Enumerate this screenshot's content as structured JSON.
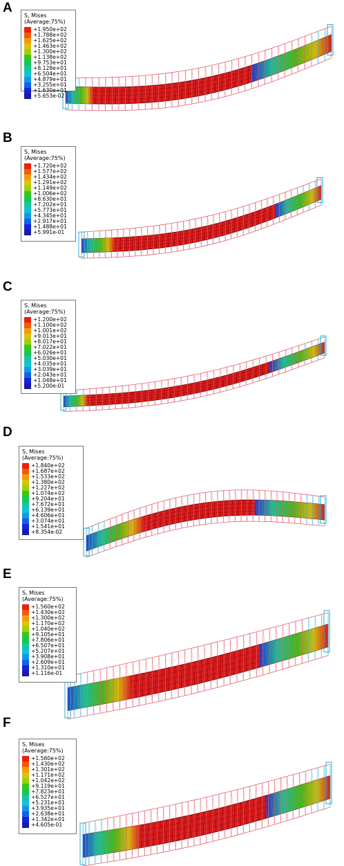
{
  "colors": [
    "#e8200c",
    "#f35a0a",
    "#f59a0a",
    "#d8c40a",
    "#98d20a",
    "#3cc41a",
    "#12c852",
    "#12c8a0",
    "#12c2d8",
    "#1298e8",
    "#1262e8",
    "#1226d8",
    "#1a1aa8"
  ],
  "panels": [
    {
      "letter": "A",
      "title": "S, Mises",
      "subtitle": "(Average:75%)",
      "values": [
        "+1.950e+02",
        "+1.788e+02",
        "+1.625e+02",
        "+1.463e+02",
        "+1.300e+02",
        "+1.138e+02",
        "+9.753e+01",
        "+8.128e+01",
        "+6.504e+01",
        "+4.879e+01",
        "+3.255e+01",
        "+1.630e+01",
        "+5.653e-02"
      ]
    },
    {
      "letter": "B",
      "title": "S, Mises",
      "subtitle": "(Average:75%)",
      "values": [
        "+1.720e+02",
        "+1.577e+02",
        "+1.434e+02",
        "+1.291e+02",
        "+1.149e+02",
        "+1.006e+02",
        "+8.630e+01",
        "+7.202e+01",
        "+5.773e+01",
        "+4.345e+01",
        "+2.917e+01",
        "+1.488e+01",
        "+5.991e-01"
      ]
    },
    {
      "letter": "C",
      "title": "S, Mises",
      "subtitle": "(Average:75%)",
      "values": [
        "+1.200e+02",
        "+1.100e+02",
        "+1.001e+02",
        "+9.013e+01",
        "+8.017e+01",
        "+7.022e+01",
        "+6.026e+01",
        "+5.030e+01",
        "+4.035e+01",
        "+3.039e+01",
        "+2.043e+01",
        "+1.048e+01",
        "+5.200e-01"
      ]
    },
    {
      "letter": "D",
      "title": "S, Mises",
      "subtitle": "(Average:75%)",
      "values": [
        "+1.840e+02",
        "+1.687e+02",
        "+1.533e+02",
        "+1.380e+02",
        "+1.227e+02",
        "+1.074e+02",
        "+9.204e+01",
        "+7.672e+01",
        "+6.139e+01",
        "+4.606e+01",
        "+3.074e+01",
        "+1.541e+01",
        "+8.354e-02"
      ]
    },
    {
      "letter": "E",
      "title": "S, Mises",
      "subtitle": "(Average:75%)",
      "values": [
        "+1.560e+02",
        "+1.430e+02",
        "+1.300e+02",
        "+1.170e+02",
        "+1.040e+02",
        "+9.105e+01",
        "+7.806e+01",
        "+6.507e+01",
        "+5.207e+01",
        "+3.908e+01",
        "+2.609e+01",
        "+1.310e+01",
        "+1.116e-01"
      ]
    },
    {
      "letter": "F",
      "title": "S, Mises",
      "subtitle": "(Average:75%)",
      "values": [
        "+1.560e+02",
        "+1.430e+02",
        "+1.301e+02",
        "+1.171e+02",
        "+1.042e+02",
        "+9.119e+01",
        "+7.823e+01",
        "+6.527e+01",
        "+5.231e+01",
        "+3.935e+01",
        "+2.638e+01",
        "+1.342e+01",
        "+4.605e-01"
      ]
    }
  ]
}
